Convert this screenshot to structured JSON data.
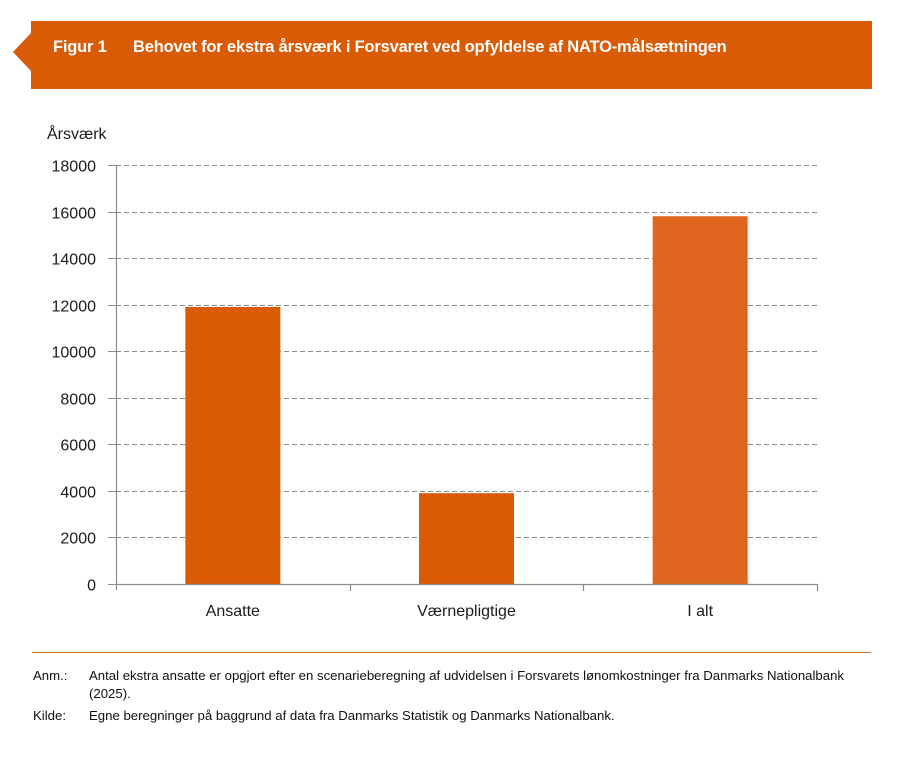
{
  "header": {
    "figure_label": "Figur 1",
    "title": "Behovet for ekstra årsværk i Forsvaret ved opfyldelse af NATO-målsætningen"
  },
  "colors": {
    "banner": "#D95B06",
    "bar": "#D95B06",
    "bar_total": "#E0661F",
    "grid": "#8C8C8C",
    "axis": "#8C8C8C",
    "footer_rule": "#C9712A"
  },
  "chart_data": {
    "type": "bar",
    "title": "Behovet for ekstra årsværk i Forsvaret ved opfyldelse af NATO-målsætningen",
    "xlabel": "",
    "ylabel": "Årsværk",
    "categories": [
      "Ansatte",
      "Værnepligtige",
      "I alt"
    ],
    "values": [
      11900,
      3900,
      15800
    ],
    "ylim": [
      0,
      18000
    ],
    "yticks": [
      0,
      2000,
      4000,
      6000,
      8000,
      10000,
      12000,
      14000,
      16000,
      18000
    ],
    "ytick_labels": [
      "0",
      "2000",
      "4000",
      "6000",
      "8000",
      "10000",
      "12000",
      "14000",
      "16000",
      "18000"
    ],
    "grid": true,
    "grid_style": "dashed",
    "legend": "none"
  },
  "footer": {
    "note_label": "Anm.:",
    "note_text": "Antal ekstra ansatte er opgjort efter en scenarieberegning af udvidelsen i Forsvarets lønomkostninger fra Danmarks Nationalbank (2025).",
    "source_label": "Kilde:",
    "source_text": "Egne beregninger på baggrund af data fra Danmarks Statistik og Danmarks Nationalbank."
  }
}
